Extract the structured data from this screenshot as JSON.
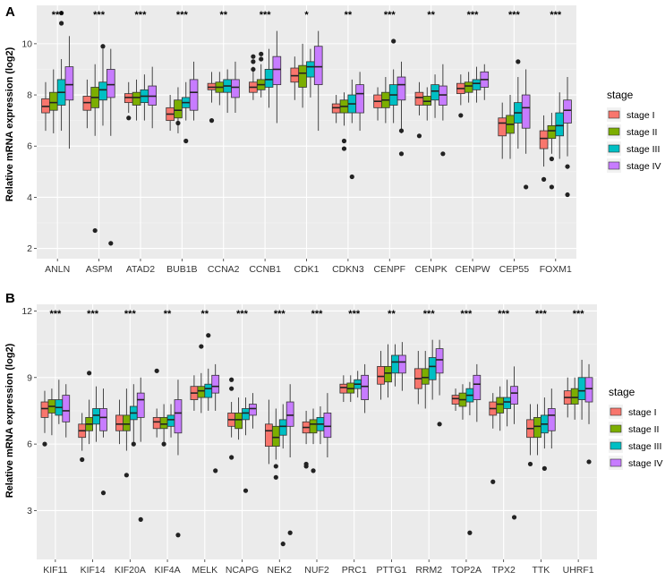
{
  "chart_data": [
    {
      "panel_label": "A",
      "type": "boxplot",
      "ylabel": "Relative mRNA expression (log2)",
      "ylim": [
        1.6,
        11.5
      ],
      "yticks": [
        "2",
        "4",
        "6",
        "8",
        "10"
      ],
      "ytick_values": [
        2,
        4,
        6,
        8,
        10
      ],
      "genes": [
        "ANLN",
        "ASPM",
        "ATAD2",
        "BUB1B",
        "CCNA2",
        "CCNB1",
        "CDK1",
        "CDKN3",
        "CENPF",
        "CENPK",
        "CENPW",
        "CEP55",
        "FOXM1"
      ],
      "significance": [
        "***",
        "***",
        "***",
        "***",
        "**",
        "***",
        "*",
        "**",
        "***",
        "**",
        "***",
        "***",
        "***"
      ],
      "series_boxes": [
        [
          [
            7.3,
            7.55,
            7.85,
            6.6,
            8.5
          ],
          [
            7.4,
            7.7,
            8.1,
            6.5,
            9.0
          ],
          [
            7.6,
            8.1,
            8.6,
            6.6,
            9.4
          ],
          [
            7.8,
            8.4,
            9.1,
            5.9,
            10.3
          ]
        ],
        [
          [
            7.4,
            7.7,
            7.95,
            6.7,
            8.6
          ],
          [
            7.5,
            7.9,
            8.3,
            6.4,
            9.2
          ],
          [
            7.8,
            8.2,
            8.5,
            6.8,
            9.8
          ],
          [
            7.9,
            8.4,
            9.0,
            6.4,
            9.8
          ]
        ],
        [
          [
            7.7,
            7.9,
            8.05,
            7.3,
            8.5
          ],
          [
            7.6,
            7.9,
            8.1,
            7.0,
            8.6
          ],
          [
            7.7,
            7.95,
            8.2,
            7.0,
            8.8
          ],
          [
            7.6,
            7.95,
            8.35,
            6.7,
            9.1
          ]
        ],
        [
          [
            7.0,
            7.25,
            7.5,
            6.6,
            8.0
          ],
          [
            7.1,
            7.4,
            7.8,
            6.5,
            8.3
          ],
          [
            7.5,
            7.7,
            7.9,
            7.0,
            8.5
          ],
          [
            7.4,
            8.1,
            8.6,
            7.0,
            9.3
          ]
        ],
        [
          [
            8.2,
            8.3,
            8.45,
            7.7,
            8.9
          ],
          [
            8.1,
            8.3,
            8.5,
            7.6,
            8.9
          ],
          [
            8.1,
            8.35,
            8.6,
            7.3,
            9.0
          ],
          [
            7.9,
            8.3,
            8.6,
            7.3,
            9.3
          ]
        ],
        [
          [
            8.1,
            8.3,
            8.5,
            7.8,
            9.1
          ],
          [
            8.2,
            8.4,
            8.6,
            7.9,
            9.2
          ],
          [
            8.3,
            8.6,
            9.0,
            7.5,
            9.8
          ],
          [
            8.4,
            9.0,
            9.5,
            6.9,
            10.5
          ]
        ],
        [
          [
            8.5,
            8.75,
            9.05,
            7.8,
            9.5
          ],
          [
            8.3,
            8.85,
            9.15,
            7.5,
            10.0
          ],
          [
            8.7,
            9.1,
            9.3,
            7.9,
            9.8
          ],
          [
            8.4,
            9.1,
            9.9,
            6.6,
            10.5
          ]
        ],
        [
          [
            7.3,
            7.5,
            7.65,
            6.9,
            8.0
          ],
          [
            7.3,
            7.55,
            7.8,
            6.8,
            8.1
          ],
          [
            7.3,
            7.65,
            8.0,
            6.9,
            8.6
          ],
          [
            7.3,
            8.05,
            8.4,
            6.6,
            8.9
          ]
        ],
        [
          [
            7.5,
            7.75,
            8.0,
            7.0,
            8.3
          ],
          [
            7.5,
            7.8,
            8.1,
            6.9,
            8.7
          ],
          [
            7.6,
            8.0,
            8.4,
            6.9,
            9.0
          ],
          [
            7.8,
            8.4,
            8.7,
            6.5,
            9.3
          ]
        ],
        [
          [
            7.6,
            7.9,
            8.1,
            7.2,
            8.5
          ],
          [
            7.6,
            7.75,
            7.95,
            7.0,
            8.3
          ],
          [
            7.8,
            8.15,
            8.4,
            7.1,
            8.8
          ],
          [
            7.6,
            8.0,
            8.35,
            7.0,
            9.2
          ]
        ],
        [
          [
            8.05,
            8.25,
            8.45,
            7.6,
            8.8
          ],
          [
            8.1,
            8.35,
            8.5,
            7.7,
            8.9
          ],
          [
            8.2,
            8.45,
            8.6,
            7.7,
            9.1
          ],
          [
            8.3,
            8.6,
            8.9,
            7.8,
            9.2
          ]
        ],
        [
          [
            6.4,
            6.9,
            7.1,
            5.5,
            7.7
          ],
          [
            6.5,
            6.85,
            7.2,
            5.5,
            8.0
          ],
          [
            6.9,
            7.3,
            7.7,
            5.9,
            8.7
          ],
          [
            6.7,
            7.5,
            8.0,
            5.7,
            9.0
          ]
        ],
        [
          [
            5.9,
            6.3,
            6.6,
            5.2,
            7.2
          ],
          [
            6.3,
            6.6,
            6.8,
            5.7,
            7.3
          ],
          [
            6.4,
            6.8,
            7.3,
            5.5,
            8.1
          ],
          [
            6.9,
            7.4,
            7.8,
            5.6,
            8.7
          ]
        ]
      ],
      "outliers": [
        [
          [],
          [],
          [
            11.2,
            10.8
          ],
          []
        ],
        [
          [],
          [
            2.7
          ],
          [
            9.9
          ],
          [
            2.2
          ]
        ],
        [
          [
            7.1
          ],
          [],
          [],
          []
        ],
        [
          [],
          [
            6.9
          ],
          [
            6.2
          ],
          []
        ],
        [
          [
            7.0
          ],
          [],
          [],
          []
        ],
        [
          [
            9.5,
            9.3,
            9.0
          ],
          [
            9.6,
            9.4
          ],
          [],
          []
        ],
        [
          [],
          [],
          [],
          []
        ],
        [
          [],
          [
            6.2,
            5.9
          ],
          [
            4.8
          ],
          []
        ],
        [
          [],
          [],
          [
            10.1
          ],
          [
            6.6,
            5.7
          ]
        ],
        [
          [
            6.4
          ],
          [],
          [],
          [
            5.7
          ]
        ],
        [
          [
            7.2
          ],
          [],
          [],
          []
        ],
        [
          [],
          [],
          [
            9.3
          ],
          [
            4.4
          ]
        ],
        [
          [
            4.7
          ],
          [
            4.4,
            5.5
          ],
          [],
          [
            5.2,
            4.1
          ]
        ]
      ]
    },
    {
      "panel_label": "B",
      "type": "boxplot",
      "ylabel": "Relative mRNA expression (log2)",
      "ylim": [
        0.8,
        12.3
      ],
      "yticks": [
        "3",
        "6",
        "9",
        "12"
      ],
      "ytick_values": [
        3,
        6,
        9,
        12
      ],
      "genes": [
        "KIF11",
        "KIF14",
        "KIF20A",
        "KIF4A",
        "MELK",
        "NCAPG",
        "NEK2",
        "NUF2",
        "PRC1",
        "PTTG1",
        "RRM2",
        "TOP2A",
        "TPX2",
        "TTK",
        "UHRF1"
      ],
      "significance": [
        "***",
        "***",
        "***",
        "**",
        "**",
        "***",
        "***",
        "***",
        "***",
        "**",
        "***",
        "***",
        "***",
        "***",
        "***"
      ],
      "series_boxes": [
        [
          [
            7.2,
            7.6,
            7.9,
            6.5,
            8.4
          ],
          [
            7.4,
            7.7,
            8.0,
            6.4,
            8.5
          ],
          [
            7.3,
            7.65,
            8.0,
            6.9,
            8.9
          ],
          [
            7.0,
            7.5,
            8.2,
            6.3,
            8.7
          ]
        ],
        [
          [
            6.3,
            6.6,
            6.9,
            5.7,
            7.4
          ],
          [
            6.6,
            6.9,
            7.2,
            6.0,
            8.0
          ],
          [
            6.9,
            7.3,
            7.6,
            6.1,
            8.6
          ],
          [
            6.6,
            7.2,
            7.6,
            6.3,
            8.5
          ]
        ],
        [
          [
            6.6,
            6.9,
            7.3,
            6.0,
            8.0
          ],
          [
            6.6,
            6.9,
            7.3,
            5.7,
            8.5
          ],
          [
            7.1,
            7.4,
            7.7,
            6.1,
            8.7
          ],
          [
            7.2,
            8.0,
            8.3,
            6.1,
            9.0
          ]
        ],
        [
          [
            6.7,
            7.0,
            7.2,
            6.3,
            7.6
          ],
          [
            6.7,
            6.9,
            7.2,
            6.1,
            7.8
          ],
          [
            6.8,
            7.1,
            7.3,
            6.3,
            7.8
          ],
          [
            6.5,
            7.4,
            8.0,
            5.5,
            8.9
          ]
        ],
        [
          [
            8.0,
            8.3,
            8.6,
            7.5,
            9.1
          ],
          [
            8.1,
            8.4,
            8.6,
            7.4,
            9.2
          ],
          [
            8.1,
            8.5,
            8.7,
            7.5,
            9.4
          ],
          [
            8.3,
            8.6,
            9.1,
            7.5,
            9.6
          ]
        ],
        [
          [
            6.8,
            7.1,
            7.4,
            6.3,
            7.9
          ],
          [
            6.7,
            7.1,
            7.4,
            6.2,
            8.1
          ],
          [
            7.1,
            7.4,
            7.6,
            6.4,
            8.1
          ],
          [
            7.3,
            7.6,
            7.8,
            6.7,
            8.3
          ]
        ],
        [
          [
            5.9,
            6.6,
            6.9,
            5.1,
            8.0
          ],
          [
            5.9,
            6.3,
            6.8,
            5.3,
            7.6
          ],
          [
            6.4,
            6.8,
            7.1,
            5.8,
            7.8
          ],
          [
            6.8,
            7.3,
            7.9,
            5.4,
            8.7
          ]
        ],
        [
          [
            6.5,
            6.75,
            7.0,
            6.0,
            7.5
          ],
          [
            6.5,
            6.9,
            7.1,
            6.0,
            7.6
          ],
          [
            6.6,
            6.9,
            7.2,
            6.0,
            7.7
          ],
          [
            6.3,
            6.8,
            7.4,
            5.4,
            8.3
          ]
        ],
        [
          [
            8.3,
            8.55,
            8.7,
            7.9,
            9.1
          ],
          [
            8.3,
            8.5,
            8.75,
            7.9,
            9.1
          ],
          [
            8.5,
            8.7,
            8.9,
            8.1,
            9.3
          ],
          [
            8.0,
            8.6,
            9.1,
            7.4,
            9.6
          ]
        ],
        [
          [
            8.7,
            9.05,
            9.5,
            8.0,
            10.2
          ],
          [
            8.8,
            9.2,
            9.5,
            8.1,
            10.5
          ],
          [
            9.2,
            9.7,
            10.0,
            8.6,
            10.5
          ],
          [
            9.2,
            9.7,
            10.0,
            8.4,
            10.6
          ]
        ],
        [
          [
            8.5,
            8.95,
            9.4,
            7.8,
            10.2
          ],
          [
            8.7,
            9.0,
            9.4,
            7.6,
            10.2
          ],
          [
            8.9,
            9.5,
            9.9,
            8.0,
            10.7
          ],
          [
            9.2,
            9.8,
            10.3,
            8.2,
            10.7
          ]
        ],
        [
          [
            7.8,
            8.05,
            8.2,
            7.5,
            8.5
          ],
          [
            7.7,
            8.0,
            8.3,
            7.1,
            8.7
          ],
          [
            7.9,
            8.2,
            8.5,
            7.3,
            8.8
          ],
          [
            8.0,
            8.7,
            9.1,
            7.0,
            9.6
          ]
        ],
        [
          [
            7.3,
            7.6,
            7.9,
            6.7,
            8.3
          ],
          [
            7.4,
            7.8,
            8.1,
            6.6,
            8.6
          ],
          [
            7.6,
            7.9,
            8.1,
            6.8,
            8.9
          ],
          [
            7.8,
            8.3,
            8.6,
            6.9,
            9.5
          ]
        ],
        [
          [
            6.3,
            6.7,
            7.1,
            5.5,
            7.8
          ],
          [
            6.3,
            6.8,
            7.2,
            5.5,
            7.8
          ],
          [
            6.5,
            6.9,
            7.3,
            5.8,
            8.1
          ],
          [
            6.6,
            7.3,
            7.6,
            5.8,
            8.5
          ]
        ],
        [
          [
            7.8,
            8.1,
            8.4,
            7.2,
            9.0
          ],
          [
            7.8,
            8.1,
            8.5,
            7.1,
            9.0
          ],
          [
            8.0,
            8.4,
            9.0,
            7.1,
            9.8
          ],
          [
            7.9,
            8.5,
            9.0,
            6.9,
            9.6
          ]
        ]
      ],
      "outliers": [
        [
          [
            6.0
          ],
          [],
          [],
          []
        ],
        [
          [
            5.3
          ],
          [
            9.2
          ],
          [],
          [
            3.8
          ]
        ],
        [
          [],
          [
            4.6
          ],
          [
            6.0
          ],
          [
            2.6
          ]
        ],
        [
          [
            9.3
          ],
          [
            6.0
          ],
          [],
          [
            1.9
          ]
        ],
        [
          [],
          [
            10.4
          ],
          [
            10.9
          ],
          [
            4.8
          ]
        ],
        [
          [
            8.9,
            8.5,
            5.4
          ],
          [],
          [
            3.9
          ],
          []
        ],
        [
          [],
          [
            4.5,
            5.0
          ],
          [
            1.5
          ],
          [
            2.0
          ]
        ],
        [
          [
            5.0,
            5.1
          ],
          [
            4.8
          ],
          [],
          []
        ],
        [
          [],
          [],
          [],
          []
        ],
        [
          [],
          [],
          [],
          []
        ],
        [
          [],
          [],
          [],
          [
            6.9
          ]
        ],
        [
          [],
          [],
          [
            2.0
          ],
          []
        ],
        [
          [
            4.3
          ],
          [],
          [],
          [
            2.7
          ]
        ],
        [
          [
            5.1
          ],
          [],
          [
            4.9
          ],
          []
        ],
        [
          [],
          [],
          [],
          [
            5.2
          ]
        ]
      ]
    }
  ],
  "legend": {
    "title": "stage",
    "labels": [
      "stage I",
      "stage II",
      "stage III",
      "stage IV"
    ],
    "colors": [
      "#F8766D",
      "#7CAE00",
      "#00BFC4",
      "#C77CFF"
    ]
  },
  "panel_background": "#EBEBEB",
  "grid_color": "#FFFFFF"
}
